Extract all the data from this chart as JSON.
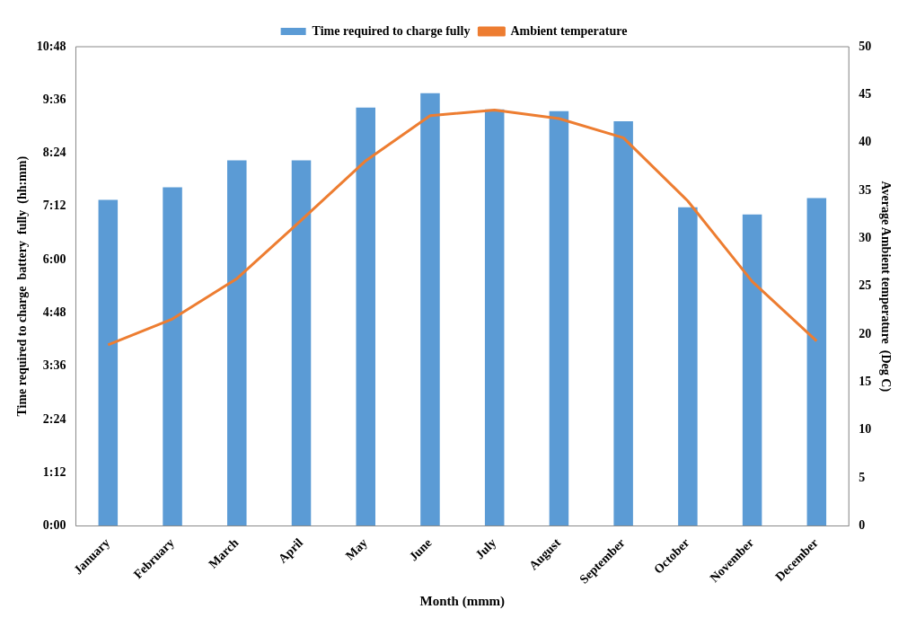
{
  "chart_data": {
    "type": "bar",
    "xlabel": "Month (mmm)",
    "ylabel": "Time required to charge  battery  fully  (hh:mm)",
    "y2label": "Average Ambient temperature  (Deg C)",
    "categories": [
      "January",
      "February",
      "March",
      "April",
      "May",
      "June",
      "July",
      "August",
      "September",
      "October",
      "November",
      "December"
    ],
    "series": [
      {
        "name": "Time required to charge fully",
        "color": "#5b9bd5",
        "values": [
          7.35,
          7.63,
          8.24,
          8.24,
          9.43,
          9.75,
          9.39,
          9.35,
          9.12,
          7.18,
          7.02,
          7.39
        ]
      },
      {
        "name": "Ambient temperature",
        "type": "line",
        "axis": "y2",
        "color": "#ed7d31",
        "marker": "none",
        "values": [
          18.9,
          21.6,
          25.8,
          31.9,
          38.1,
          42.8,
          43.4,
          42.5,
          40.5,
          33.9,
          25.5,
          19.3
        ]
      }
    ],
    "ylim": [
      0,
      10.8
    ],
    "yticks": [
      {
        "value": 0,
        "label": "0:00"
      },
      {
        "value": 1.2,
        "label": "1:12"
      },
      {
        "value": 2.4,
        "label": "2:24"
      },
      {
        "value": 3.6,
        "label": "3:36"
      },
      {
        "value": 4.8,
        "label": "4:48"
      },
      {
        "value": 6,
        "label": "6:00"
      },
      {
        "value": 7.2,
        "label": "7:12"
      },
      {
        "value": 8.4,
        "label": "8:24"
      },
      {
        "value": 9.6,
        "label": "9:36"
      },
      {
        "value": 10.8,
        "label": "10:48"
      }
    ],
    "y2lim": [
      0,
      50
    ],
    "y2ticks": [
      0,
      5,
      10,
      15,
      20,
      25,
      30,
      35,
      40,
      45,
      50
    ],
    "grid": false,
    "legend": "top"
  }
}
